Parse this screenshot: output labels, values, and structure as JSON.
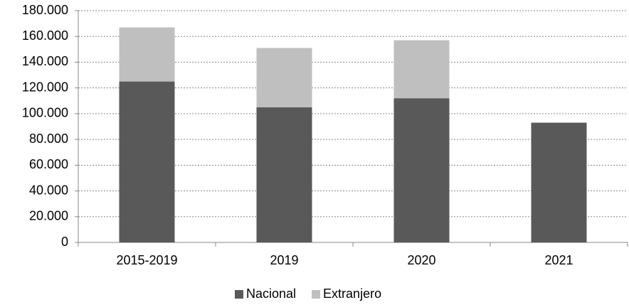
{
  "chart_data": {
    "type": "stacked_bar",
    "categories": [
      "2015-2019",
      "2019",
      "2020",
      "2021"
    ],
    "series": [
      {
        "name": "Nacional",
        "color": "#595959",
        "values": [
          125000,
          105000,
          112000,
          93000
        ]
      },
      {
        "name": "Extranjero",
        "color": "#bfbfbf",
        "values": [
          42000,
          46000,
          45000,
          null
        ]
      }
    ],
    "ylim": [
      0,
      180000
    ],
    "yticks": [
      0,
      {
        "value": 20000,
        "label": "20.000"
      },
      {
        "value": 40000,
        "label": "40.000"
      },
      {
        "value": 60000,
        "label": "60.000"
      },
      {
        "value": 80000,
        "label": "80.000"
      },
      {
        "value": 100000,
        "label": "100.000"
      },
      {
        "value": 120000,
        "label": "120.000"
      },
      {
        "value": 140000,
        "label": "140.000"
      },
      {
        "value": 160000,
        "label": "160.000"
      },
      {
        "value": 180000,
        "label": "180.000"
      }
    ],
    "grid": true,
    "legend": "bottom"
  }
}
